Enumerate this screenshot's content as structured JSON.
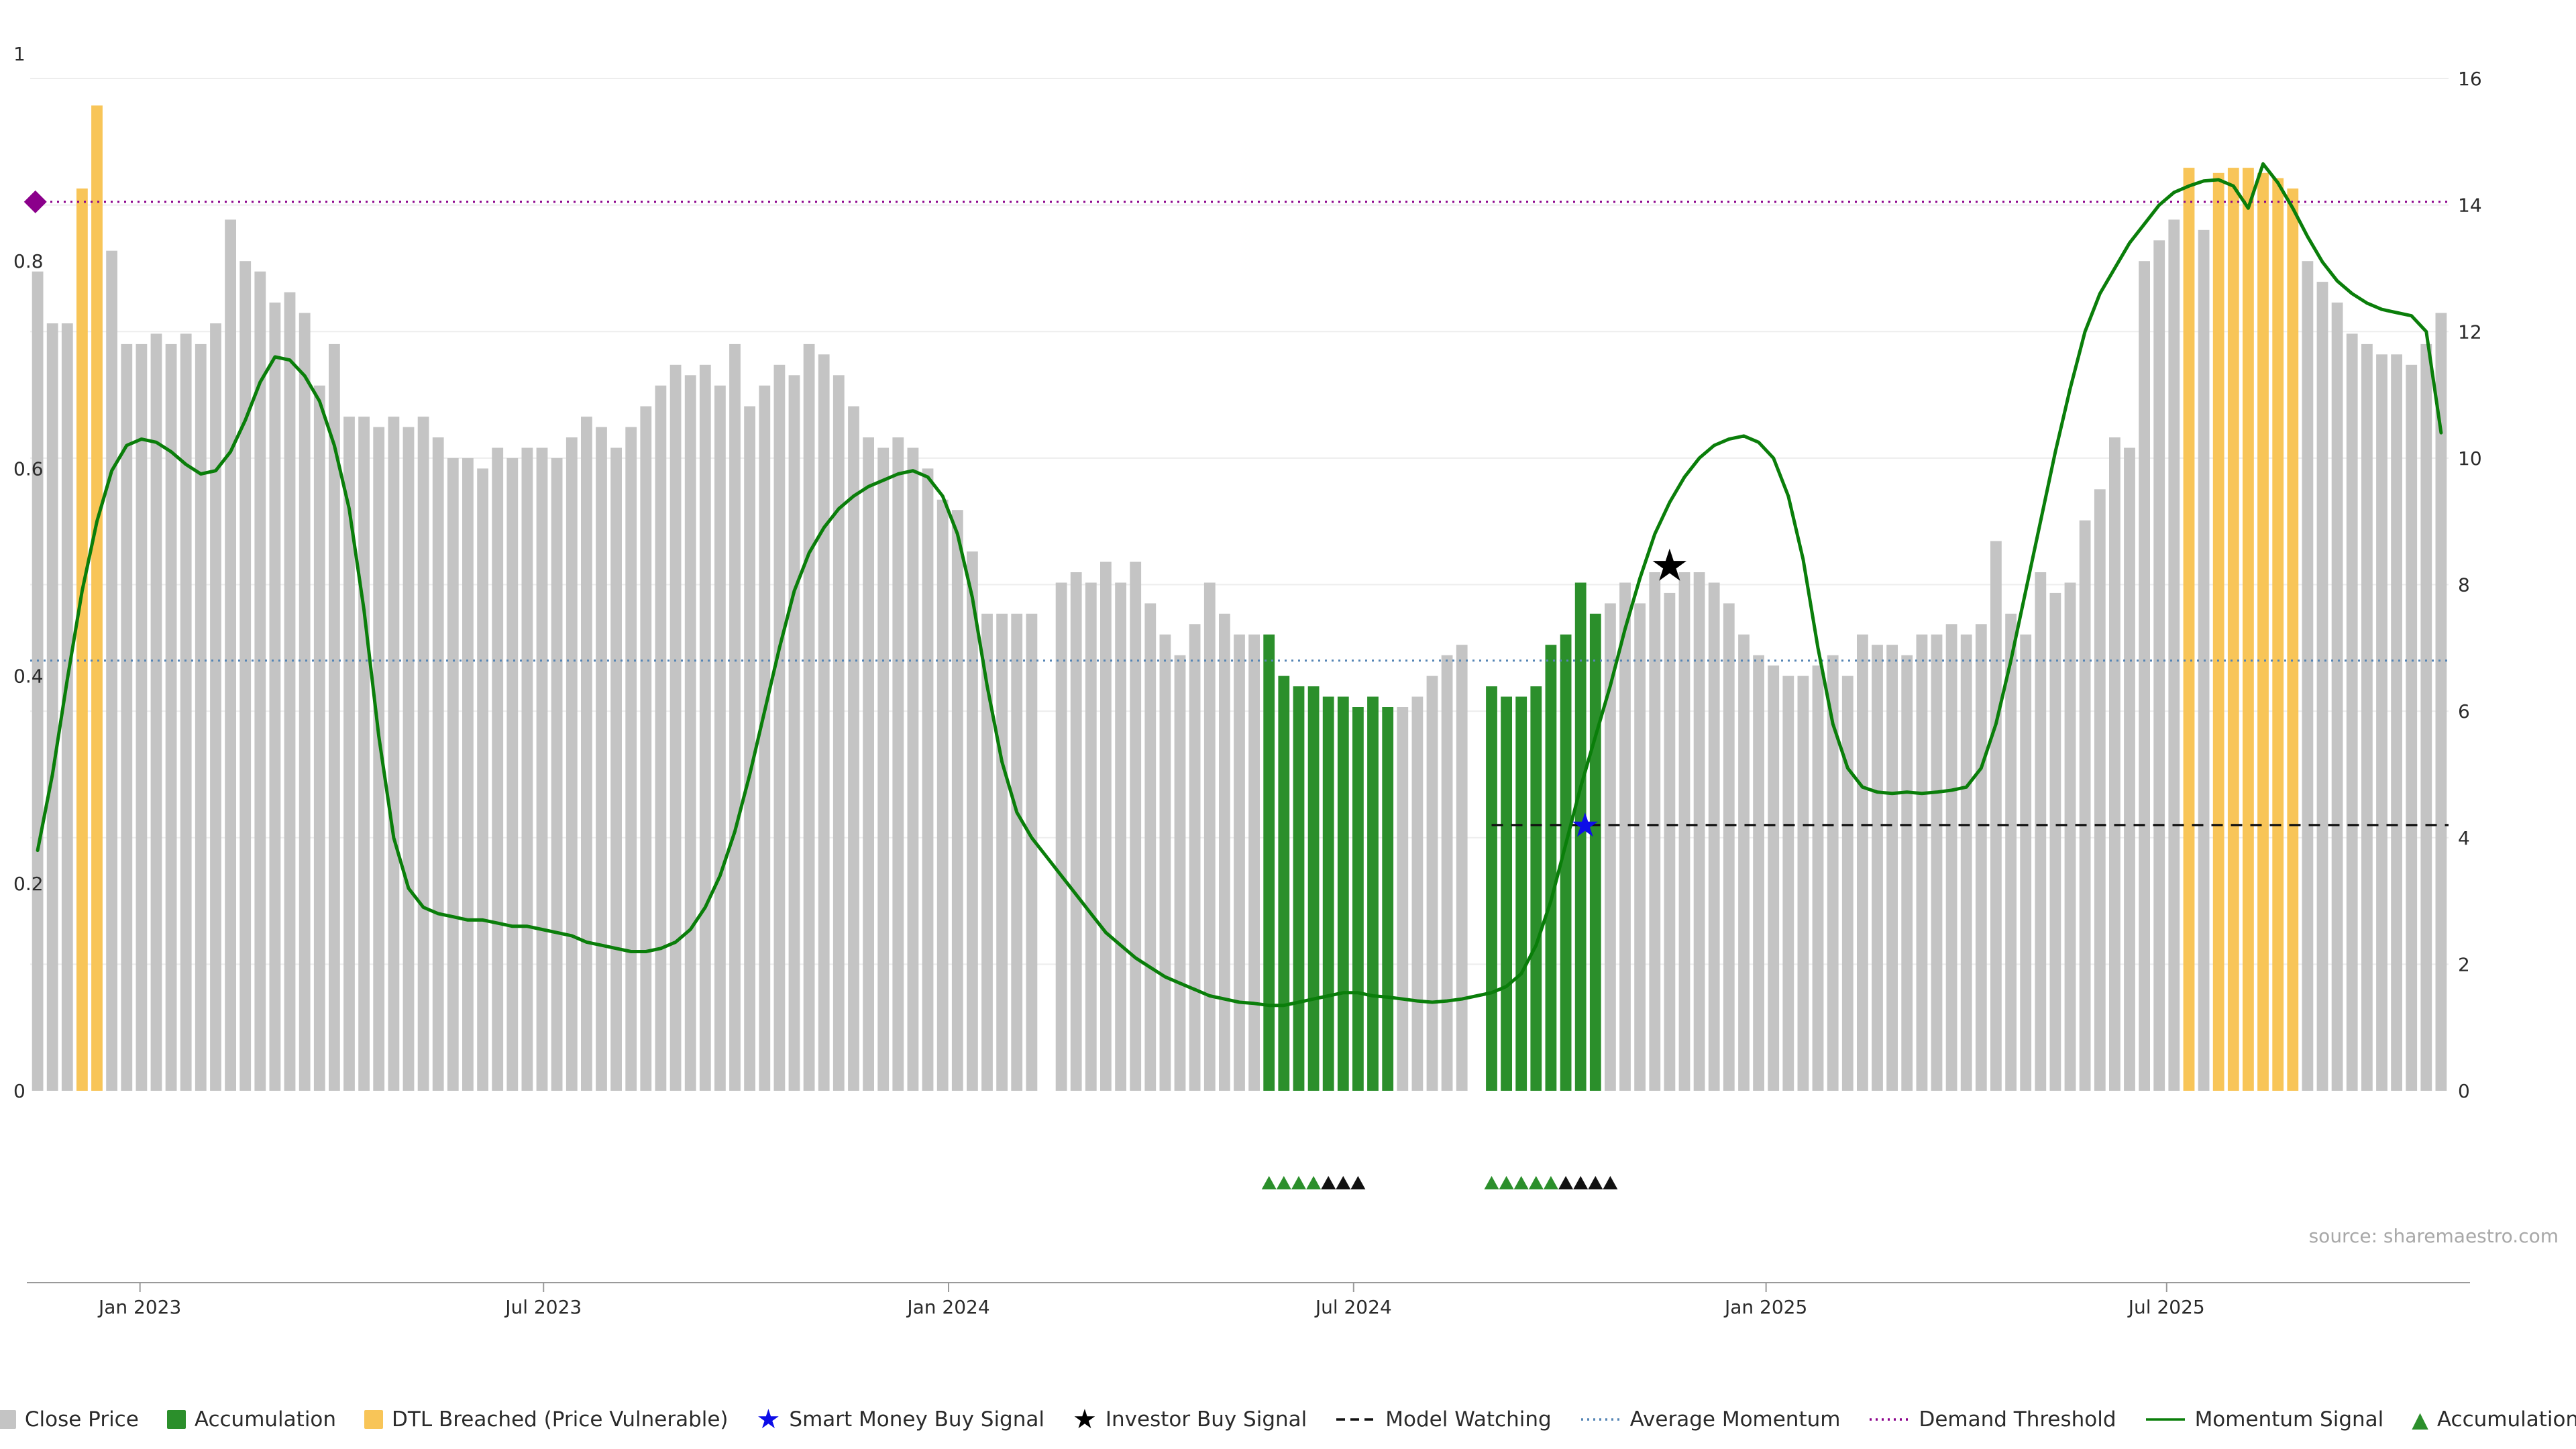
{
  "page": {
    "source_note": "source: sharemaestro.com"
  },
  "colors": {
    "close_price": "#c4c4c4",
    "accumulation": "#2b8f2b",
    "dtl_breached": "#f8c558",
    "momentum_line": "#0a7e0a",
    "smart_money_star": "#0d0de8",
    "investor_star": "#000000",
    "model_watching": "#111111",
    "average_momentum": "#5585b5",
    "demand_threshold": "#8b008b",
    "signal_triangle_black": "#111111",
    "grid": "#ededed",
    "axis_text": "#2b2b2b",
    "axis_line": "#9a9a9a",
    "source_text": "#a8a8a8"
  },
  "chart_data": {
    "type": "bar",
    "title": "",
    "xlabel": "",
    "ylabel": "",
    "grid": true,
    "legend_position": "bottom-center",
    "left_axis": {
      "range": [
        0,
        1
      ],
      "ticks": [
        {
          "v": 0,
          "label": "0"
        },
        {
          "v": 0.2,
          "label": "0.2"
        },
        {
          "v": 0.4,
          "label": "0.4"
        },
        {
          "v": 0.6,
          "label": "0.6"
        },
        {
          "v": 0.8,
          "label": "0.8"
        },
        {
          "v": 1,
          "label": "1"
        }
      ]
    },
    "right_axis": {
      "range": [
        0,
        16
      ],
      "ticks": [
        {
          "v": 0,
          "label": "0"
        },
        {
          "v": 2,
          "label": "2"
        },
        {
          "v": 4,
          "label": "4"
        },
        {
          "v": 6,
          "label": "6"
        },
        {
          "v": 8,
          "label": "8"
        },
        {
          "v": 10,
          "label": "10"
        },
        {
          "v": 12,
          "label": "12"
        },
        {
          "v": 14,
          "label": "14"
        },
        {
          "v": 16,
          "label": "16"
        }
      ]
    },
    "x_ticks": [
      {
        "label": "Jan 2023",
        "pos": 7.4
      },
      {
        "label": "Jul 2023",
        "pos": 34.6
      },
      {
        "label": "Jan 2024",
        "pos": 61.9
      },
      {
        "label": "Jul 2024",
        "pos": 89.2
      },
      {
        "label": "Jan 2025",
        "pos": 117.0
      },
      {
        "label": "Jul 2025",
        "pos": 144.0
      }
    ],
    "bars": {
      "series_name": "Close Price (normalized, weekly)",
      "kinds_key": {
        "g": "Close Price",
        "a": "Accumulation",
        "o": "DTL Breached (Price Vulnerable)",
        "x": "missing"
      },
      "kinds_rle": [
        [
          "g",
          3
        ],
        [
          "o",
          2
        ],
        [
          "g",
          63
        ],
        [
          "x",
          1
        ],
        [
          "g",
          14
        ],
        [
          "a",
          9
        ],
        [
          "g",
          5
        ],
        [
          "x",
          1
        ],
        [
          "a",
          8
        ],
        [
          "g",
          39
        ],
        [
          "o",
          1
        ],
        [
          "g",
          1
        ],
        [
          "o",
          6
        ],
        [
          "g",
          10
        ]
      ],
      "values": [
        0.79,
        0.74,
        0.74,
        0.87,
        0.95,
        0.81,
        0.72,
        0.72,
        0.73,
        0.72,
        0.73,
        0.72,
        0.74,
        0.84,
        0.8,
        0.79,
        0.76,
        0.77,
        0.75,
        0.68,
        0.72,
        0.65,
        0.65,
        0.64,
        0.65,
        0.64,
        0.65,
        0.63,
        0.61,
        0.61,
        0.6,
        0.62,
        0.61,
        0.62,
        0.62,
        0.61,
        0.63,
        0.65,
        0.64,
        0.62,
        0.64,
        0.66,
        0.68,
        0.7,
        0.69,
        0.7,
        0.68,
        0.72,
        0.66,
        0.68,
        0.7,
        0.69,
        0.72,
        0.71,
        0.69,
        0.66,
        0.63,
        0.62,
        0.63,
        0.62,
        0.6,
        0.57,
        0.56,
        0.52,
        0.46,
        0.46,
        0.46,
        0.46,
        0,
        0.49,
        0.5,
        0.49,
        0.51,
        0.49,
        0.51,
        0.47,
        0.44,
        0.42,
        0.45,
        0.49,
        0.46,
        0.44,
        0.44,
        0.44,
        0.4,
        0.39,
        0.39,
        0.38,
        0.38,
        0.37,
        0.38,
        0.37,
        0.37,
        0.38,
        0.4,
        0.42,
        0.43,
        0,
        0.39,
        0.38,
        0.38,
        0.39,
        0.43,
        0.44,
        0.49,
        0.46,
        0.47,
        0.49,
        0.47,
        0.5,
        0.48,
        0.5,
        0.5,
        0.49,
        0.47,
        0.44,
        0.42,
        0.41,
        0.4,
        0.4,
        0.41,
        0.42,
        0.4,
        0.44,
        0.43,
        0.43,
        0.42,
        0.44,
        0.44,
        0.45,
        0.44,
        0.45,
        0.53,
        0.46,
        0.44,
        0.5,
        0.48,
        0.49,
        0.55,
        0.58,
        0.63,
        0.62,
        0.8,
        0.82,
        0.84,
        0.89,
        0.83,
        0.885,
        0.89,
        0.89,
        0.885,
        0.88,
        0.87,
        0.8,
        0.78,
        0.76,
        0.73,
        0.72,
        0.71,
        0.71,
        0.7,
        0.72,
        0.75
      ]
    },
    "momentum_signal": [
      3.8,
      5.0,
      6.5,
      7.9,
      9.0,
      9.8,
      10.2,
      10.3,
      10.25,
      10.1,
      9.9,
      9.75,
      9.8,
      10.1,
      10.6,
      11.2,
      11.6,
      11.55,
      11.3,
      10.9,
      10.2,
      9.2,
      7.6,
      5.6,
      4.0,
      3.2,
      2.9,
      2.8,
      2.75,
      2.7,
      2.7,
      2.65,
      2.6,
      2.6,
      2.55,
      2.5,
      2.45,
      2.35,
      2.3,
      2.25,
      2.2,
      2.2,
      2.25,
      2.35,
      2.55,
      2.9,
      3.4,
      4.1,
      5.0,
      6.0,
      7.0,
      7.9,
      8.5,
      8.9,
      9.2,
      9.4,
      9.55,
      9.65,
      9.75,
      9.8,
      9.7,
      9.4,
      8.8,
      7.8,
      6.4,
      5.2,
      4.4,
      4.0,
      3.7,
      3.4,
      3.1,
      2.8,
      2.5,
      2.3,
      2.1,
      1.95,
      1.8,
      1.7,
      1.6,
      1.5,
      1.45,
      1.4,
      1.38,
      1.35,
      1.35,
      1.4,
      1.45,
      1.5,
      1.55,
      1.55,
      1.5,
      1.48,
      1.45,
      1.42,
      1.4,
      1.42,
      1.45,
      1.5,
      1.55,
      1.65,
      1.85,
      2.3,
      3.0,
      3.9,
      4.8,
      5.6,
      6.4,
      7.3,
      8.1,
      8.8,
      9.3,
      9.7,
      10.0,
      10.2,
      10.3,
      10.35,
      10.25,
      10.0,
      9.4,
      8.4,
      7.0,
      5.8,
      5.1,
      4.8,
      4.72,
      4.7,
      4.72,
      4.7,
      4.72,
      4.75,
      4.8,
      5.1,
      5.8,
      6.8,
      7.9,
      9.0,
      10.1,
      11.1,
      12.0,
      12.6,
      13.0,
      13.4,
      13.7,
      14.0,
      14.2,
      14.3,
      14.38,
      14.4,
      14.3,
      13.95,
      14.65,
      14.35,
      13.95,
      13.5,
      13.1,
      12.8,
      12.6,
      12.45,
      12.35,
      12.3,
      12.25,
      12.0,
      10.4
    ],
    "hlines": [
      {
        "name": "Demand Threshold",
        "axis": "right",
        "value": 14.05,
        "style": "dotted",
        "color_key": "demand_threshold",
        "from_index": 0,
        "to_index": 163
      },
      {
        "name": "Average Momentum",
        "axis": "right",
        "value": 6.8,
        "style": "dotted",
        "color_key": "average_momentum",
        "from_index": 0,
        "to_index": 163
      },
      {
        "name": "Model Watching",
        "axis": "right",
        "value": 4.2,
        "style": "dashed",
        "color_key": "model_watching",
        "from_index": 98.5,
        "to_index": 163
      }
    ],
    "markers": [
      {
        "name": "demand-threshold-diamond",
        "shape": "diamond",
        "index": 0.35,
        "value": 14.05,
        "color_key": "demand_threshold",
        "size": 17
      },
      {
        "name": "smart-money-buy-signal",
        "shape": "star",
        "index": 104.8,
        "value": 4.2,
        "color_key": "smart_money_star",
        "size": 50
      },
      {
        "name": "investor-buy-signal",
        "shape": "star",
        "index": 110.5,
        "value": 8.3,
        "color_key": "investor_star",
        "size": 66
      }
    ],
    "event_triangles": {
      "green_indices": [
        84,
        85,
        86,
        87,
        99,
        100,
        101,
        102,
        103
      ],
      "black_indices": [
        88,
        89,
        90,
        104,
        105,
        106,
        107
      ]
    },
    "legend": [
      {
        "icon": "square",
        "color_key": "close_price",
        "label": "Close Price"
      },
      {
        "icon": "square",
        "color_key": "accumulation",
        "label": "Accumulation"
      },
      {
        "icon": "square",
        "color_key": "dtl_breached",
        "label": "DTL Breached (Price Vulnerable)"
      },
      {
        "icon": "star",
        "color_key": "smart_money_star",
        "label": "Smart Money Buy Signal"
      },
      {
        "icon": "star",
        "color_key": "investor_star",
        "label": "Investor Buy Signal"
      },
      {
        "icon": "dashed-line",
        "color_key": "model_watching",
        "label": "Model Watching"
      },
      {
        "icon": "dotted-line",
        "color_key": "average_momentum",
        "label": "Average Momentum"
      },
      {
        "icon": "dotted-line",
        "color_key": "demand_threshold",
        "label": "Demand Threshold"
      },
      {
        "icon": "solid-line",
        "color_key": "momentum_line",
        "label": "Momentum Signal"
      },
      {
        "icon": "triangle",
        "color_key": "accumulation",
        "label": "Accumulation"
      }
    ]
  }
}
